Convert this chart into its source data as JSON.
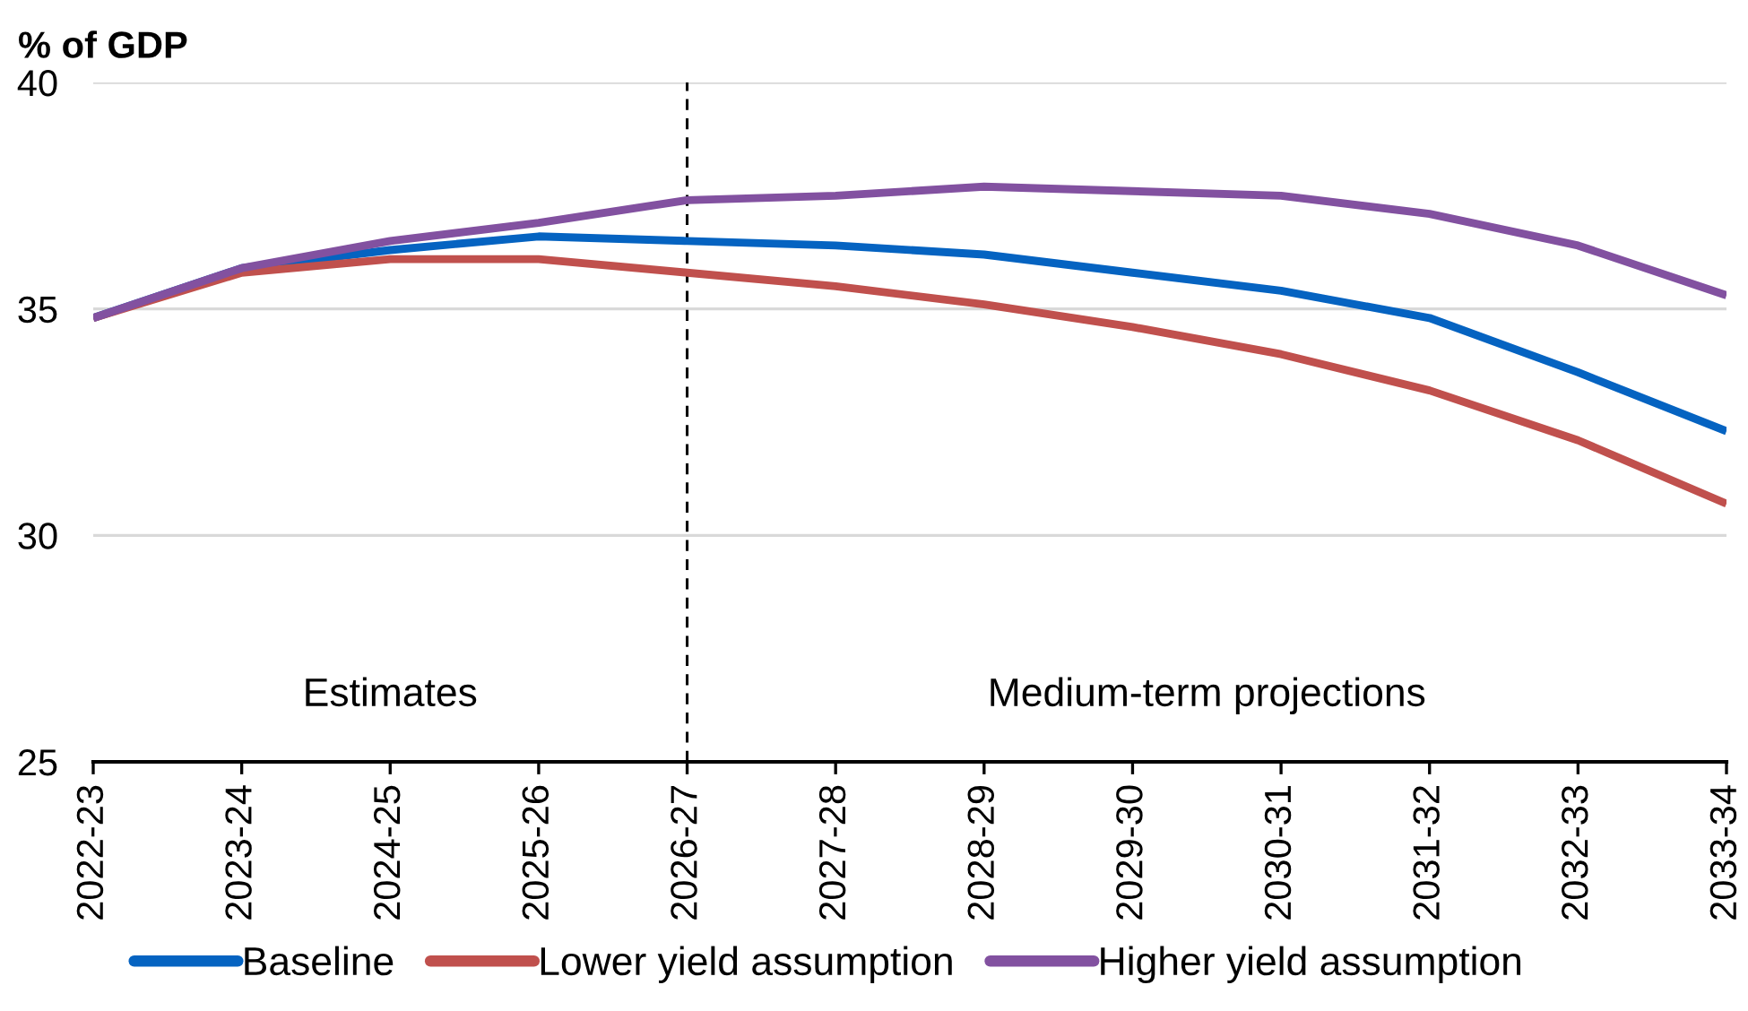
{
  "chart_data": {
    "type": "line",
    "ylabel": "% of GDP",
    "categories": [
      "2022-23",
      "2023-24",
      "2024-25",
      "2025-26",
      "2026-27",
      "2027-28",
      "2028-29",
      "2029-30",
      "2030-31",
      "2031-32",
      "2032-33",
      "2033-34"
    ],
    "series": [
      {
        "name": "Baseline",
        "color": "#0563c1",
        "values": [
          34.8,
          35.9,
          36.3,
          36.6,
          36.5,
          36.4,
          36.2,
          35.8,
          35.4,
          34.8,
          33.6,
          32.3
        ]
      },
      {
        "name": "Lower yield assumption",
        "color": "#c0504d",
        "values": [
          34.8,
          35.8,
          36.1,
          36.1,
          35.8,
          35.5,
          35.1,
          34.6,
          34.0,
          33.2,
          32.1,
          30.7
        ]
      },
      {
        "name": "Higher yield assumption",
        "color": "#8251a0",
        "values": [
          34.8,
          35.9,
          36.5,
          36.9,
          37.4,
          37.5,
          37.7,
          37.6,
          37.5,
          37.1,
          36.4,
          35.3
        ]
      }
    ],
    "ylim": [
      25,
      40
    ],
    "yticks": [
      25,
      30,
      35,
      40
    ],
    "grid": "y",
    "legend": "bottom",
    "line_style": "solid",
    "ref_lines": [
      {
        "axis": "x",
        "value": "2026-27",
        "color": "#000000",
        "line_style": "dashed"
      }
    ],
    "annotations": [
      "Estimates",
      "Medium-term projections"
    ]
  }
}
